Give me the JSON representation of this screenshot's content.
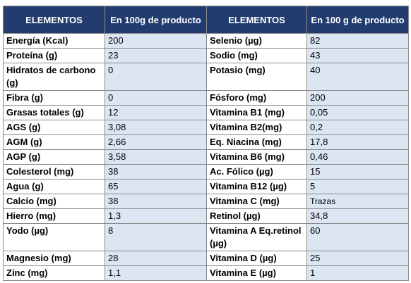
{
  "headers": [
    "ELEMENTOS",
    "En 100g de producto",
    "ELEMENTOS",
    "En 100 g de producto"
  ],
  "rows": [
    [
      "Energía (Kcal)",
      "200",
      "Selenio (µg)",
      "82"
    ],
    [
      "Proteína (g)",
      "23",
      "Sodio (mg)",
      "43"
    ],
    [
      "Hidratos de carbono (g)",
      "0",
      "Potasio (mg)",
      "40"
    ],
    [
      "Fibra (g)",
      "0",
      "Fósforo (mg)",
      "200"
    ],
    [
      "Grasas totales (g)",
      "12",
      "Vitamina B1 (mg)",
      "0,05"
    ],
    [
      "AGS (g)",
      "3,08",
      "Vitamina B2(mg)",
      "0,2"
    ],
    [
      "AGM (g)",
      "2,66",
      "Eq. Niacina (mg)",
      "17,8"
    ],
    [
      "AGP (g)",
      "3,58",
      "Vitamina B6 (mg)",
      "0,46"
    ],
    [
      "Colesterol (mg)",
      "38",
      "Ac. Fólico (µg)",
      "15"
    ],
    [
      "Agua (g)",
      "65",
      "Vitamina B12 (µg)",
      "5"
    ],
    [
      "Calcio (mg)",
      "38",
      "Vitamina C (mg)",
      "Trazas"
    ],
    [
      "Hierro (mg)",
      "1,3",
      "Retinol (µg)",
      "34,8"
    ],
    [
      "Yodo (µg)",
      "8",
      "Vitamina A Eq.retinol (µg)",
      "60"
    ],
    [
      "Magnesio (mg)",
      "28",
      "Vitamina D (µg)",
      "25"
    ],
    [
      "Zinc (mg)",
      "1,1",
      "Vitamina E (µg)",
      "1"
    ]
  ],
  "colors": {
    "header_bg": "#233c70",
    "header_text": "#ffffff",
    "value_bg": "#dce6f3",
    "border": "#8a8a8a"
  }
}
